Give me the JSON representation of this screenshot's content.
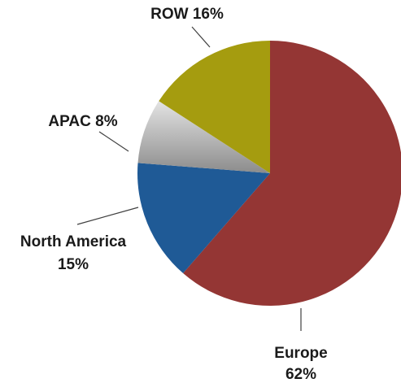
{
  "chart_data": {
    "type": "pie",
    "title": "",
    "series": [
      {
        "label": "Europe",
        "percent_label": "62%",
        "value": 62,
        "color": "#943634"
      },
      {
        "label": "North America",
        "percent_label": "15%",
        "value": 15,
        "color": "#1f5a96"
      },
      {
        "label": "APAC",
        "percent_label": "8%",
        "value": 8,
        "color": "#a6a6a6"
      },
      {
        "label": "ROW",
        "percent_label": "16%",
        "value": 16,
        "color": "#a59c0f"
      }
    ],
    "start_angle_deg": 0,
    "direction": "clockwise",
    "legend": "none",
    "labels": "outside-with-leader-lines"
  }
}
